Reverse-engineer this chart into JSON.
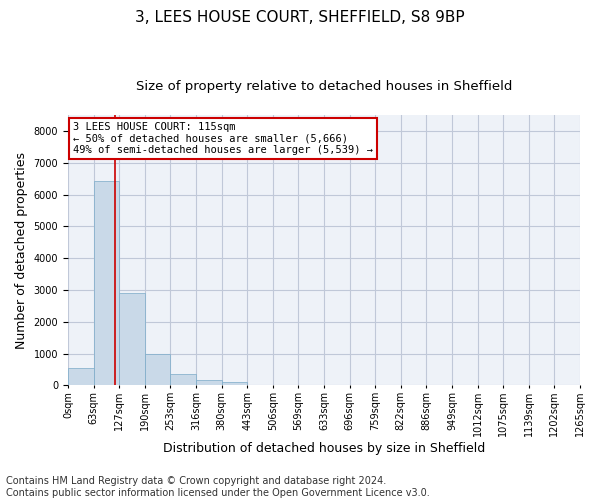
{
  "title": "3, LEES HOUSE COURT, SHEFFIELD, S8 9BP",
  "subtitle": "Size of property relative to detached houses in Sheffield",
  "xlabel": "Distribution of detached houses by size in Sheffield",
  "ylabel": "Number of detached properties",
  "bar_values": [
    560,
    6430,
    2920,
    990,
    360,
    170,
    100,
    0,
    0,
    0,
    0,
    0,
    0,
    0,
    0,
    0,
    0,
    0,
    0,
    0
  ],
  "bar_labels": [
    "0sqm",
    "63sqm",
    "127sqm",
    "190sqm",
    "253sqm",
    "316sqm",
    "380sqm",
    "443sqm",
    "506sqm",
    "569sqm",
    "633sqm",
    "696sqm",
    "759sqm",
    "822sqm",
    "886sqm",
    "949sqm",
    "1012sqm",
    "1075sqm",
    "1139sqm",
    "1202sqm",
    "1265sqm"
  ],
  "bar_color": "#c9d9e8",
  "bar_edge_color": "#7aaac8",
  "bar_edge_width": 0.5,
  "grid_color": "#c0c8d8",
  "background_color": "#eef2f8",
  "vline_x": 1.83,
  "vline_color": "#cc0000",
  "annotation_text": "3 LEES HOUSE COURT: 115sqm\n← 50% of detached houses are smaller (5,666)\n49% of semi-detached houses are larger (5,539) →",
  "annotation_box_color": "#ffffff",
  "annotation_box_edge": "#cc0000",
  "ylim": [
    0,
    8500
  ],
  "yticks": [
    0,
    1000,
    2000,
    3000,
    4000,
    5000,
    6000,
    7000,
    8000
  ],
  "footer_text": "Contains HM Land Registry data © Crown copyright and database right 2024.\nContains public sector information licensed under the Open Government Licence v3.0.",
  "title_fontsize": 11,
  "subtitle_fontsize": 9.5,
  "label_fontsize": 9,
  "tick_fontsize": 7,
  "footer_fontsize": 7,
  "annotation_fontsize": 7.5
}
